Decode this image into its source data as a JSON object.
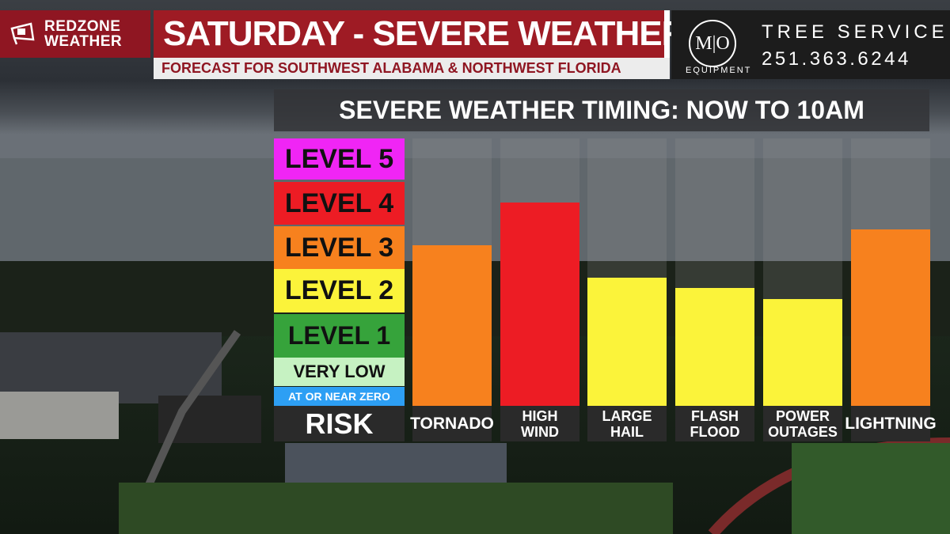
{
  "brand": {
    "line1": "REDZONE",
    "line2": "WEATHER",
    "color": "#8f1622"
  },
  "header": {
    "title": "SATURDAY - SEVERE WEATHER RISK",
    "subtitle": "FORECAST FOR SOUTHWEST ALABAMA & NORTHWEST FLORIDA"
  },
  "sponsor": {
    "logo_text": "M|O",
    "logo_sub": "EQUIPMENT",
    "name": "TREE SERVICE",
    "phone": "251.363.6244"
  },
  "chart_data": {
    "type": "bar",
    "title": "SEVERE WEATHER TIMING: NOW TO 10AM",
    "ylabel": "RISK",
    "levels": [
      {
        "label": "LEVEL 5",
        "color": "#f025f5"
      },
      {
        "label": "LEVEL 4",
        "color": "#ed1c24"
      },
      {
        "label": "LEVEL 3",
        "color": "#f7811e"
      },
      {
        "label": "LEVEL 2",
        "color": "#fbf33a"
      },
      {
        "label": "LEVEL 1",
        "color": "#36a33b"
      },
      {
        "label": "VERY LOW",
        "color": "#c6f2c2"
      },
      {
        "label": "AT OR NEAR ZERO",
        "color": "#2d9ff4"
      }
    ],
    "categories": [
      "TORNADO",
      "HIGH\nWIND",
      "LARGE\nHAIL",
      "FLASH\nFLOOD",
      "POWER\nOUTAGES",
      "LIGHTNING"
    ],
    "values": [
      3.0,
      3.8,
      2.4,
      2.2,
      2.0,
      3.3
    ],
    "bar_colors": [
      "#f7811e",
      "#ed1c24",
      "#fbf33a",
      "#fbf33a",
      "#fbf33a",
      "#f7811e"
    ],
    "ylim": [
      0,
      5
    ]
  }
}
